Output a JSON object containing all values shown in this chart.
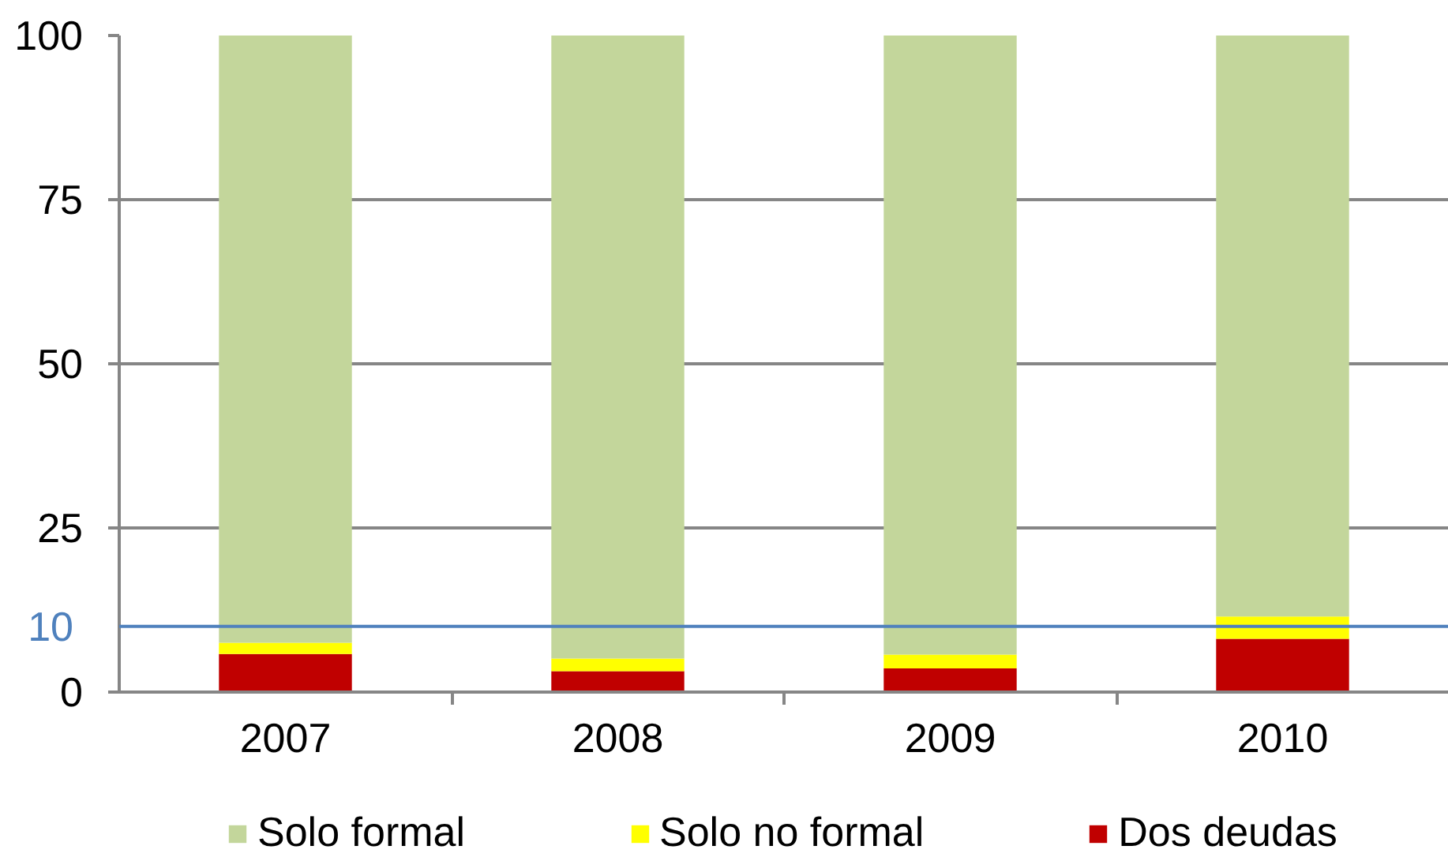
{
  "chart_data": {
    "type": "bar",
    "stacked": true,
    "categories": [
      "2007",
      "2008",
      "2009",
      "2010"
    ],
    "series": [
      {
        "name": "Dos deudas",
        "color": "#c00000",
        "values": [
          5.8,
          3.2,
          3.6,
          8.1
        ]
      },
      {
        "name": "Solo no formal",
        "color": "#ffff00",
        "values": [
          1.7,
          1.9,
          2.1,
          3.4
        ]
      },
      {
        "name": "Solo formal",
        "color": "#c3d69b",
        "values": [
          92.5,
          94.9,
          94.3,
          88.5
        ]
      }
    ],
    "ylim": [
      0,
      100
    ],
    "yticks": [
      0,
      25,
      50,
      75,
      100
    ],
    "grid": "y",
    "legend": "bottom",
    "ref_lines": [
      {
        "axis": "y",
        "value": 10,
        "label": "10",
        "color": "#4f81bd"
      }
    ]
  }
}
